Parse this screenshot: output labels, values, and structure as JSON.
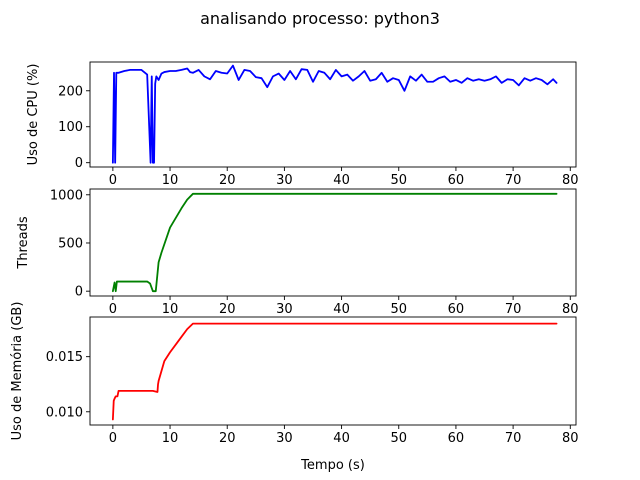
{
  "title": "analisando processo: python3",
  "chart_data": [
    {
      "type": "line",
      "ylabel": "Uso de CPU (%)",
      "xlabel": "",
      "xlim": [
        -4,
        81
      ],
      "ylim": [
        -12,
        280
      ],
      "xticks": [
        0,
        10,
        20,
        30,
        40,
        50,
        60,
        70,
        80
      ],
      "yticks": [
        0,
        100,
        200
      ],
      "ytick_labels": [
        "0",
        "100",
        "200"
      ],
      "color": "#0000ff",
      "series": [
        {
          "x": [
            0.0,
            0.2,
            0.4,
            0.6,
            0.8,
            1.0,
            2.0,
            3.0,
            4.0,
            5.0,
            6.0,
            6.6,
            6.8,
            7.0,
            7.2,
            7.4,
            7.6,
            8.0,
            8.5,
            9.0,
            10.0,
            11.0,
            12.0,
            13.0,
            13.5,
            14.0,
            15.0,
            16.0,
            17.0,
            18.0,
            19.0,
            20.0,
            21.0,
            22.0,
            23.0,
            24.0,
            25.0,
            26.0,
            27.0,
            28.0,
            29.0,
            30.0,
            31.0,
            32.0,
            33.0,
            34.0,
            35.0,
            36.0,
            37.0,
            38.0,
            39.0,
            40.0,
            41.0,
            42.0,
            43.0,
            44.0,
            45.0,
            46.0,
            47.0,
            48.0,
            49.0,
            50.0,
            51.0,
            52.0,
            53.0,
            54.0,
            55.0,
            56.0,
            57.0,
            58.0,
            59.0,
            60.0,
            61.0,
            62.0,
            63.0,
            64.0,
            65.0,
            66.0,
            67.0,
            68.0,
            69.0,
            70.0,
            71.0,
            72.0,
            73.0,
            74.0,
            75.0,
            76.0,
            77.0,
            77.6
          ],
          "y": [
            0,
            250,
            0,
            250,
            250,
            250,
            255,
            258,
            258,
            258,
            245,
            0,
            240,
            0,
            0,
            220,
            240,
            230,
            248,
            252,
            255,
            255,
            258,
            262,
            252,
            250,
            258,
            240,
            232,
            255,
            250,
            248,
            270,
            230,
            258,
            255,
            238,
            235,
            210,
            240,
            248,
            230,
            255,
            232,
            260,
            258,
            225,
            255,
            250,
            232,
            258,
            240,
            245,
            228,
            240,
            255,
            228,
            232,
            250,
            225,
            235,
            230,
            200,
            240,
            228,
            245,
            225,
            225,
            235,
            240,
            225,
            230,
            222,
            235,
            228,
            232,
            228,
            232,
            240,
            222,
            232,
            230,
            215,
            235,
            228,
            235,
            230,
            218,
            232,
            222
          ],
          "data_color": "#0000ff"
        }
      ]
    },
    {
      "type": "line",
      "ylabel": "Threads",
      "xlabel": "",
      "xlim": [
        -4,
        81
      ],
      "ylim": [
        -50,
        1060
      ],
      "xticks": [
        0,
        10,
        20,
        30,
        40,
        50,
        60,
        70,
        80
      ],
      "yticks": [
        0,
        500,
        1000
      ],
      "ytick_labels": [
        "0",
        "500",
        "1000"
      ],
      "color": "#008000",
      "series": [
        {
          "x": [
            0.0,
            0.3,
            0.5,
            0.7,
            1.0,
            2.0,
            4.0,
            6.0,
            6.5,
            7.0,
            7.5,
            8.0,
            8.5,
            10.0,
            12.0,
            13.0,
            14.0,
            20.0,
            30.0,
            40.0,
            50.0,
            60.0,
            70.0,
            77.6
          ],
          "y": [
            0,
            90,
            0,
            100,
            100,
            100,
            100,
            100,
            80,
            0,
            0,
            300,
            400,
            660,
            860,
            950,
            1010,
            1010,
            1010,
            1010,
            1010,
            1010,
            1010,
            1010
          ],
          "data_color": "#008000"
        }
      ]
    },
    {
      "type": "line",
      "ylabel": "Uso de Memória (GB)",
      "xlabel": "Tempo (s)",
      "xlim": [
        -4,
        81
      ],
      "ylim": [
        0.0088,
        0.0186
      ],
      "xticks": [
        0,
        10,
        20,
        30,
        40,
        50,
        60,
        70,
        80
      ],
      "yticks": [
        0.01,
        0.015
      ],
      "ytick_labels": [
        "0.010",
        "0.015"
      ],
      "color": "#ff0000",
      "series": [
        {
          "x": [
            0.0,
            0.15,
            0.3,
            0.5,
            0.8,
            1.0,
            3.0,
            5.0,
            7.0,
            7.8,
            7.9,
            8.0,
            9.0,
            10.0,
            11.0,
            12.0,
            13.0,
            14.0,
            20.0,
            30.0,
            40.0,
            50.0,
            60.0,
            70.0,
            77.6
          ],
          "y": [
            0.0093,
            0.011,
            0.0112,
            0.0114,
            0.0114,
            0.0119,
            0.0119,
            0.0119,
            0.0119,
            0.0118,
            0.0125,
            0.0128,
            0.0146,
            0.0154,
            0.0161,
            0.0168,
            0.0175,
            0.018,
            0.018,
            0.018,
            0.018,
            0.018,
            0.018,
            0.018,
            0.018
          ],
          "data_color": "#ff0000"
        }
      ]
    }
  ]
}
